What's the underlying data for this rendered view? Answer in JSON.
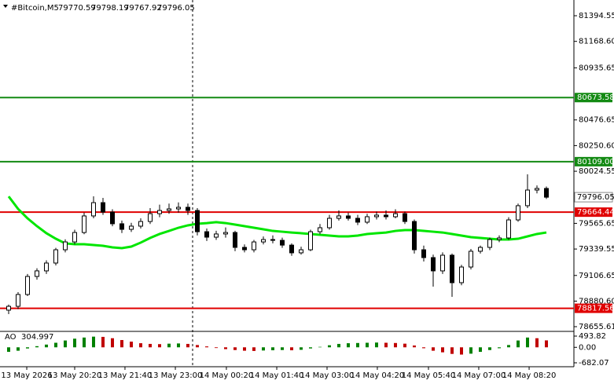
{
  "chart_data": {
    "type": "candlestick",
    "symbol": "#Bitcoin,M5",
    "header_values": [
      79770.59,
      79798.19,
      79767.92,
      79796.05
    ],
    "ylim": [
      78614,
      81533
    ],
    "yticks": [
      81394.55,
      {
        "value": 81168.6,
        "label": "81168.60"
      },
      80935.65,
      80476.65,
      {
        "value": 80250.6,
        "label": "80250.60"
      },
      80024.55,
      79565.65,
      79339.55,
      79106.65,
      {
        "value": 78880.6,
        "label": "78880.60"
      },
      78655.61
    ],
    "xticks": [
      {
        "value": 1.92,
        "label": "13 May 2026"
      },
      {
        "value": 7,
        "label": "13 May 20:20"
      },
      {
        "value": 12.33,
        "label": "13 May 21:40"
      },
      {
        "value": 17.67,
        "label": "13 May 23:00"
      },
      {
        "value": 23.08,
        "label": "14 May 00:20"
      },
      {
        "value": 28.42,
        "label": "14 May 01:40"
      },
      {
        "value": 33.75,
        "label": "14 May 03:00"
      },
      {
        "value": 39.08,
        "label": "14 May 04:20"
      },
      {
        "value": 44.5,
        "label": "14 May 05:40"
      },
      {
        "value": 49.83,
        "label": "14 May 07:00"
      },
      {
        "value": 55.17,
        "label": "14 May 08:20"
      }
    ],
    "candles": [
      [
        78801,
        78850,
        78766,
        78835
      ],
      [
        78835,
        78960,
        78810,
        78939
      ],
      [
        78939,
        79120,
        78925,
        79098
      ],
      [
        79098,
        79170,
        79070,
        79147
      ],
      [
        79147,
        79240,
        79120,
        79216
      ],
      [
        79216,
        79350,
        79195,
        79333
      ],
      [
        79333,
        79425,
        79310,
        79402
      ],
      [
        79402,
        79510,
        79380,
        79485
      ],
      [
        79485,
        79660,
        79470,
        79631
      ],
      [
        79631,
        79804,
        79610,
        79748
      ],
      [
        79748,
        79790,
        79640,
        79665
      ],
      [
        79665,
        79690,
        79540,
        79562
      ],
      [
        79562,
        79590,
        79480,
        79513
      ],
      [
        79513,
        79570,
        79490,
        79541
      ],
      [
        79541,
        79610,
        79520,
        79582
      ],
      [
        79582,
        79700,
        79560,
        79651
      ],
      [
        79651,
        79730,
        79620,
        79679
      ],
      [
        79679,
        79740,
        79650,
        79693
      ],
      [
        79693,
        79750,
        79660,
        79707
      ],
      [
        79707,
        79740,
        79640,
        79679
      ],
      [
        79679,
        79700,
        79460,
        79492
      ],
      [
        79492,
        79520,
        79410,
        79444
      ],
      [
        79444,
        79500,
        79420,
        79472
      ],
      [
        79472,
        79530,
        79440,
        79485
      ],
      [
        79485,
        79500,
        79320,
        79354
      ],
      [
        79354,
        79380,
        79310,
        79333
      ],
      [
        79333,
        79420,
        79310,
        79402
      ],
      [
        79402,
        79450,
        79380,
        79423
      ],
      [
        79423,
        79460,
        79390,
        79416
      ],
      [
        79416,
        79440,
        79350,
        79374
      ],
      [
        79374,
        79390,
        79280,
        79306
      ],
      [
        79306,
        79360,
        79290,
        79333
      ],
      [
        79333,
        79510,
        79320,
        79492
      ],
      [
        79492,
        79560,
        79470,
        79527
      ],
      [
        79527,
        79640,
        79510,
        79610
      ],
      [
        79610,
        79680,
        79590,
        79631
      ],
      [
        79631,
        79660,
        79590,
        79610
      ],
      [
        79610,
        79640,
        79550,
        79576
      ],
      [
        79576,
        79650,
        79560,
        79624
      ],
      [
        79624,
        79670,
        79600,
        79638
      ],
      [
        79638,
        79680,
        79600,
        79624
      ],
      [
        79624,
        79690,
        79610,
        79651
      ],
      [
        79651,
        79670,
        79560,
        79582
      ],
      [
        79582,
        79600,
        79300,
        79333
      ],
      [
        79333,
        79370,
        79230,
        79264
      ],
      [
        79264,
        79290,
        79008,
        79147
      ],
      [
        79147,
        79310,
        79120,
        79285
      ],
      [
        79285,
        79300,
        78918,
        79043
      ],
      [
        79043,
        79200,
        79020,
        79181
      ],
      [
        79181,
        79340,
        79160,
        79320
      ],
      [
        79320,
        79370,
        79300,
        79354
      ],
      [
        79354,
        79440,
        79330,
        79423
      ],
      [
        79423,
        79460,
        79400,
        79437
      ],
      [
        79437,
        79620,
        79420,
        79596
      ],
      [
        79596,
        79740,
        79580,
        79721
      ],
      [
        79721,
        79997,
        79700,
        79859
      ],
      [
        79859,
        79900,
        79830,
        79873
      ],
      [
        79873,
        79890,
        79780,
        79796.05
      ]
    ],
    "ma": {
      "color": "#00e600",
      "values": [
        79803,
        79693,
        79610,
        79541,
        79479,
        79430,
        79389,
        79382,
        79382,
        79375,
        79368,
        79354,
        79347,
        79361,
        79396,
        79437,
        79472,
        79499,
        79527,
        79548,
        79562,
        79568,
        79576,
        79568,
        79555,
        79541,
        79527,
        79513,
        79499,
        79492,
        79485,
        79479,
        79472,
        79465,
        79458,
        79451,
        79451,
        79458,
        79472,
        79479,
        79485,
        79499,
        79506,
        79506,
        79499,
        79492,
        79485,
        79472,
        79458,
        79444,
        79437,
        79430,
        79423,
        79423,
        79430,
        79451,
        79472,
        79485
      ]
    },
    "levels": {
      "values": [
        80673.58,
        80109,
        79664.44,
        78817.56
      ],
      "value_labels": [
        "80673.58",
        "80109.00",
        "79664.44",
        "78817.56"
      ],
      "colors": [
        "#138a13",
        "#138a13",
        "#e00000",
        "#e00000"
      ]
    },
    "ao": {
      "name": "AO",
      "up_color": "#008000",
      "down_color": "#c00000",
      "values": [
        -200,
        -150,
        -50,
        50,
        120,
        200,
        300,
        380,
        430,
        470,
        460,
        400,
        320,
        250,
        180,
        150,
        140,
        160,
        170,
        150,
        100,
        40,
        -30,
        -80,
        -120,
        -150,
        -160,
        -140,
        -130,
        -120,
        -130,
        -110,
        -50,
        20,
        90,
        150,
        180,
        190,
        200,
        210,
        200,
        190,
        160,
        80,
        -40,
        -150,
        -220,
        -290,
        -320,
        -280,
        -200,
        -120,
        -40,
        100,
        300,
        430,
        400,
        304.997
      ],
      "ylim": [
        -820,
        701
      ],
      "yticks": [
        493.82,
        {
          "value": 0,
          "label": "0.00"
        },
        -682.07
      ]
    }
  }
}
